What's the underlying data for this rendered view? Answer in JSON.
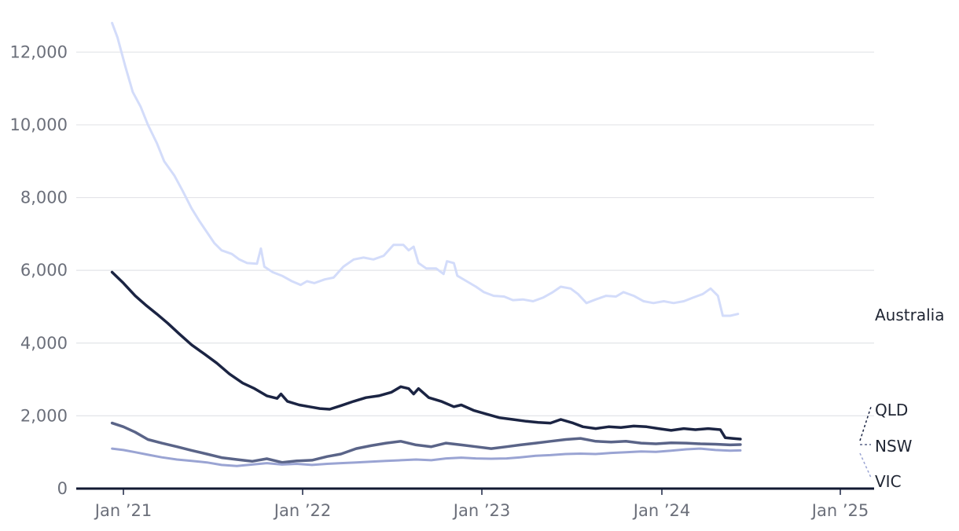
{
  "chart_data": {
    "type": "line",
    "title": "",
    "xlabel": "",
    "ylabel": "",
    "x_range": [
      "2020-12-01",
      "2025-03-01"
    ],
    "ylim": [
      0,
      13000
    ],
    "y_ticks": [
      0,
      2000,
      4000,
      6000,
      8000,
      10000,
      12000
    ],
    "y_tick_labels": [
      "0",
      "2,000",
      "4,000",
      "6,000",
      "8,000",
      "10,000",
      "12,000"
    ],
    "x_ticks": [
      "2021-01-01",
      "2022-01-01",
      "2023-01-01",
      "2024-01-01",
      "2025-01-01"
    ],
    "x_tick_labels": [
      "Jan  21",
      "Jan  22",
      "Jan  23",
      "Jan  24",
      "Jan  25"
    ],
    "grid": "horizontal",
    "legend": "direct labels at right end of lines",
    "series": [
      {
        "name": "Australia",
        "color": "#d3dcfa",
        "points": [
          [
            "2020-12-09",
            12800
          ],
          [
            "2020-12-20",
            12400
          ],
          [
            "2021-01-05",
            11600
          ],
          [
            "2021-01-20",
            10900
          ],
          [
            "2021-02-05",
            10500
          ],
          [
            "2021-02-20",
            10000
          ],
          [
            "2021-03-10",
            9500
          ],
          [
            "2021-03-25",
            9000
          ],
          [
            "2021-04-15",
            8600
          ],
          [
            "2021-05-01",
            8200
          ],
          [
            "2021-05-20",
            7700
          ],
          [
            "2021-06-05",
            7350
          ],
          [
            "2021-06-20",
            7050
          ],
          [
            "2021-07-05",
            6750
          ],
          [
            "2021-07-20",
            6550
          ],
          [
            "2021-08-10",
            6450
          ],
          [
            "2021-08-25",
            6300
          ],
          [
            "2021-09-10",
            6200
          ],
          [
            "2021-09-30",
            6180
          ],
          [
            "2021-10-08",
            6600
          ],
          [
            "2021-10-15",
            6100
          ],
          [
            "2021-11-01",
            5950
          ],
          [
            "2021-11-20",
            5850
          ],
          [
            "2021-12-10",
            5700
          ],
          [
            "2021-12-28",
            5600
          ],
          [
            "2022-01-10",
            5700
          ],
          [
            "2022-01-25",
            5650
          ],
          [
            "2022-02-15",
            5750
          ],
          [
            "2022-03-05",
            5800
          ],
          [
            "2022-03-25",
            6100
          ],
          [
            "2022-04-15",
            6300
          ],
          [
            "2022-05-05",
            6350
          ],
          [
            "2022-05-25",
            6300
          ],
          [
            "2022-06-15",
            6400
          ],
          [
            "2022-07-05",
            6700
          ],
          [
            "2022-07-25",
            6700
          ],
          [
            "2022-08-05",
            6550
          ],
          [
            "2022-08-15",
            6650
          ],
          [
            "2022-08-25",
            6200
          ],
          [
            "2022-09-10",
            6050
          ],
          [
            "2022-09-30",
            6050
          ],
          [
            "2022-10-15",
            5900
          ],
          [
            "2022-10-22",
            6250
          ],
          [
            "2022-11-05",
            6200
          ],
          [
            "2022-11-12",
            5850
          ],
          [
            "2022-12-01",
            5700
          ],
          [
            "2022-12-20",
            5550
          ],
          [
            "2023-01-05",
            5400
          ],
          [
            "2023-01-25",
            5300
          ],
          [
            "2023-02-15",
            5280
          ],
          [
            "2023-03-05",
            5180
          ],
          [
            "2023-03-25",
            5200
          ],
          [
            "2023-04-15",
            5150
          ],
          [
            "2023-05-05",
            5250
          ],
          [
            "2023-05-25",
            5400
          ],
          [
            "2023-06-10",
            5550
          ],
          [
            "2023-06-30",
            5500
          ],
          [
            "2023-07-15",
            5350
          ],
          [
            "2023-08-01",
            5100
          ],
          [
            "2023-08-20",
            5200
          ],
          [
            "2023-09-10",
            5300
          ],
          [
            "2023-09-30",
            5280
          ],
          [
            "2023-10-15",
            5400
          ],
          [
            "2023-11-05",
            5300
          ],
          [
            "2023-11-25",
            5150
          ],
          [
            "2023-12-15",
            5100
          ],
          [
            "2024-01-05",
            5150
          ],
          [
            "2024-01-25",
            5100
          ],
          [
            "2024-02-15",
            5150
          ],
          [
            "2024-03-05",
            5250
          ],
          [
            "2024-03-25",
            5350
          ],
          [
            "2024-04-10",
            5500
          ],
          [
            "2024-04-25",
            5300
          ],
          [
            "2024-05-05",
            4750
          ],
          [
            "2024-05-20",
            4750
          ],
          [
            "2024-06-05",
            4800
          ]
        ],
        "date_shift_note_exclude": true
      },
      {
        "name": "QLD",
        "color": "#1b2443",
        "points": [
          [
            "2020-12-09",
            5950
          ],
          [
            "2021-01-01",
            5650
          ],
          [
            "2021-01-25",
            5300
          ],
          [
            "2021-02-15",
            5050
          ],
          [
            "2021-03-10",
            4800
          ],
          [
            "2021-04-01",
            4550
          ],
          [
            "2021-04-25",
            4250
          ],
          [
            "2021-05-20",
            3950
          ],
          [
            "2021-06-15",
            3700
          ],
          [
            "2021-07-10",
            3450
          ],
          [
            "2021-08-05",
            3150
          ],
          [
            "2021-09-01",
            2900
          ],
          [
            "2021-09-25",
            2750
          ],
          [
            "2021-10-20",
            2550
          ],
          [
            "2021-11-10",
            2480
          ],
          [
            "2021-11-18",
            2600
          ],
          [
            "2021-12-01",
            2400
          ],
          [
            "2021-12-25",
            2300
          ],
          [
            "2022-01-15",
            2250
          ],
          [
            "2022-02-05",
            2200
          ],
          [
            "2022-02-25",
            2180
          ],
          [
            "2022-03-20",
            2280
          ],
          [
            "2022-04-15",
            2400
          ],
          [
            "2022-05-10",
            2500
          ],
          [
            "2022-06-05",
            2550
          ],
          [
            "2022-07-01",
            2650
          ],
          [
            "2022-07-20",
            2800
          ],
          [
            "2022-08-05",
            2750
          ],
          [
            "2022-08-15",
            2600
          ],
          [
            "2022-08-25",
            2750
          ],
          [
            "2022-09-15",
            2500
          ],
          [
            "2022-10-10",
            2400
          ],
          [
            "2022-11-05",
            2250
          ],
          [
            "2022-11-20",
            2300
          ],
          [
            "2022-12-15",
            2150
          ],
          [
            "2023-01-10",
            2050
          ],
          [
            "2023-02-05",
            1950
          ],
          [
            "2023-03-05",
            1900
          ],
          [
            "2023-04-01",
            1850
          ],
          [
            "2023-04-25",
            1820
          ],
          [
            "2023-05-20",
            1800
          ],
          [
            "2023-06-10",
            1900
          ],
          [
            "2023-07-05",
            1800
          ],
          [
            "2023-07-25",
            1700
          ],
          [
            "2023-08-20",
            1650
          ],
          [
            "2023-09-15",
            1700
          ],
          [
            "2023-10-10",
            1680
          ],
          [
            "2023-11-05",
            1720
          ],
          [
            "2023-12-01",
            1700
          ],
          [
            "2023-12-25",
            1650
          ],
          [
            "2024-01-20",
            1600
          ],
          [
            "2024-02-15",
            1650
          ],
          [
            "2024-03-10",
            1620
          ],
          [
            "2024-04-05",
            1650
          ],
          [
            "2024-04-30",
            1620
          ],
          [
            "2024-05-10",
            1400
          ],
          [
            "2024-05-25",
            1380
          ],
          [
            "2024-06-10",
            1360
          ]
        ]
      },
      {
        "name": "NSW",
        "color": "#5a6488",
        "points": [
          [
            "2020-12-09",
            1800
          ],
          [
            "2021-01-01",
            1700
          ],
          [
            "2021-01-25",
            1550
          ],
          [
            "2021-02-20",
            1350
          ],
          [
            "2021-03-20",
            1250
          ],
          [
            "2021-04-20",
            1150
          ],
          [
            "2021-05-20",
            1050
          ],
          [
            "2021-06-20",
            950
          ],
          [
            "2021-07-20",
            850
          ],
          [
            "2021-08-20",
            800
          ],
          [
            "2021-09-20",
            750
          ],
          [
            "2021-10-20",
            820
          ],
          [
            "2021-11-20",
            720
          ],
          [
            "2021-12-20",
            760
          ],
          [
            "2022-01-20",
            780
          ],
          [
            "2022-02-20",
            880
          ],
          [
            "2022-03-20",
            950
          ],
          [
            "2022-04-20",
            1100
          ],
          [
            "2022-05-20",
            1180
          ],
          [
            "2022-06-20",
            1250
          ],
          [
            "2022-07-20",
            1300
          ],
          [
            "2022-08-20",
            1200
          ],
          [
            "2022-09-20",
            1150
          ],
          [
            "2022-10-20",
            1250
          ],
          [
            "2022-11-20",
            1200
          ],
          [
            "2022-12-20",
            1150
          ],
          [
            "2023-01-20",
            1100
          ],
          [
            "2023-02-20",
            1150
          ],
          [
            "2023-03-20",
            1200
          ],
          [
            "2023-04-20",
            1250
          ],
          [
            "2023-05-20",
            1300
          ],
          [
            "2023-06-20",
            1350
          ],
          [
            "2023-07-20",
            1380
          ],
          [
            "2023-08-20",
            1300
          ],
          [
            "2023-09-20",
            1280
          ],
          [
            "2023-10-20",
            1300
          ],
          [
            "2023-11-20",
            1250
          ],
          [
            "2023-12-20",
            1230
          ],
          [
            "2024-01-20",
            1260
          ],
          [
            "2024-02-20",
            1250
          ],
          [
            "2024-03-20",
            1230
          ],
          [
            "2024-04-20",
            1220
          ],
          [
            "2024-05-20",
            1200
          ],
          [
            "2024-06-10",
            1210
          ]
        ]
      },
      {
        "name": "VIC",
        "color": "#9aa4d3",
        "points": [
          [
            "2020-12-09",
            1100
          ],
          [
            "2021-01-01",
            1060
          ],
          [
            "2021-01-25",
            1000
          ],
          [
            "2021-02-20",
            930
          ],
          [
            "2021-03-20",
            860
          ],
          [
            "2021-04-20",
            800
          ],
          [
            "2021-05-20",
            760
          ],
          [
            "2021-06-20",
            720
          ],
          [
            "2021-07-20",
            650
          ],
          [
            "2021-08-20",
            620
          ],
          [
            "2021-09-20",
            660
          ],
          [
            "2021-10-20",
            700
          ],
          [
            "2021-11-20",
            660
          ],
          [
            "2021-12-20",
            680
          ],
          [
            "2022-01-20",
            650
          ],
          [
            "2022-02-20",
            680
          ],
          [
            "2022-03-20",
            700
          ],
          [
            "2022-04-20",
            720
          ],
          [
            "2022-05-20",
            740
          ],
          [
            "2022-06-20",
            760
          ],
          [
            "2022-07-20",
            780
          ],
          [
            "2022-08-20",
            800
          ],
          [
            "2022-09-20",
            780
          ],
          [
            "2022-10-20",
            830
          ],
          [
            "2022-11-20",
            850
          ],
          [
            "2022-12-20",
            830
          ],
          [
            "2023-01-20",
            820
          ],
          [
            "2023-02-20",
            830
          ],
          [
            "2023-03-20",
            860
          ],
          [
            "2023-04-20",
            900
          ],
          [
            "2023-05-20",
            920
          ],
          [
            "2023-06-20",
            950
          ],
          [
            "2023-07-20",
            960
          ],
          [
            "2023-08-20",
            950
          ],
          [
            "2023-09-20",
            980
          ],
          [
            "2023-10-20",
            1000
          ],
          [
            "2023-11-20",
            1020
          ],
          [
            "2023-12-20",
            1010
          ],
          [
            "2024-01-20",
            1040
          ],
          [
            "2024-02-20",
            1080
          ],
          [
            "2024-03-20",
            1100
          ],
          [
            "2024-04-20",
            1060
          ],
          [
            "2024-05-20",
            1040
          ],
          [
            "2024-06-10",
            1050
          ]
        ]
      }
    ]
  }
}
